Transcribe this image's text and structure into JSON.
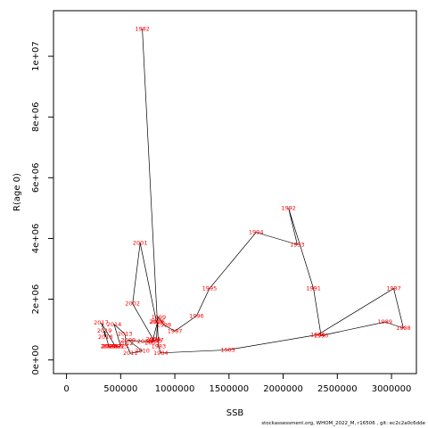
{
  "chart_data": {
    "type": "line",
    "xlabel": "SSB",
    "ylabel": "R(age 0)",
    "xlim": [
      -120000,
      3230000
    ],
    "ylim": [
      -450000,
      11500000
    ],
    "x_ticks": [
      0,
      500000,
      1000000,
      1500000,
      2000000,
      2500000,
      3000000
    ],
    "x_tick_labels": [
      "0",
      "500000",
      "1000000",
      "1500000",
      "2000000",
      "2500000",
      "3000000"
    ],
    "y_ticks": [
      0,
      2000000,
      4000000,
      6000000,
      8000000,
      10000000
    ],
    "y_tick_labels": [
      "0e+00",
      "2e+06",
      "4e+06",
      "6e+06",
      "8e+06",
      "1e+07"
    ],
    "grid": false,
    "line_color": "#000000",
    "label_color": "#ff0000",
    "points": [
      {
        "year": "1982",
        "x": 700000,
        "y": 10900000
      },
      {
        "year": "1983",
        "x": 850000,
        "y": 450000
      },
      {
        "year": "1984",
        "x": 870000,
        "y": 230000
      },
      {
        "year": "1985",
        "x": 1490000,
        "y": 330000
      },
      {
        "year": "1986",
        "x": 2320000,
        "y": 830000
      },
      {
        "year": "1987",
        "x": 3020000,
        "y": 2350000
      },
      {
        "year": "1988",
        "x": 3110000,
        "y": 1050000
      },
      {
        "year": "1989",
        "x": 2940000,
        "y": 1250000
      },
      {
        "year": "1990",
        "x": 2350000,
        "y": 800000
      },
      {
        "year": "1991",
        "x": 2280000,
        "y": 2350000
      },
      {
        "year": "1992",
        "x": 2050000,
        "y": 5000000
      },
      {
        "year": "1993",
        "x": 2130000,
        "y": 3800000
      },
      {
        "year": "1994",
        "x": 1750000,
        "y": 4200000
      },
      {
        "year": "1995",
        "x": 1320000,
        "y": 2350000
      },
      {
        "year": "1996",
        "x": 1200000,
        "y": 1450000
      },
      {
        "year": "1997",
        "x": 1000000,
        "y": 950000
      },
      {
        "year": "1998",
        "x": 900000,
        "y": 1150000
      },
      {
        "year": "1999",
        "x": 850000,
        "y": 1400000
      },
      {
        "year": "2000",
        "x": 830000,
        "y": 1250000
      },
      {
        "year": "2001",
        "x": 680000,
        "y": 3850000
      },
      {
        "year": "2002",
        "x": 610000,
        "y": 1850000
      },
      {
        "year": "2003",
        "x": 810000,
        "y": 620000
      },
      {
        "year": "2004",
        "x": 800000,
        "y": 680000
      },
      {
        "year": "2005",
        "x": 790000,
        "y": 570000
      },
      {
        "year": "2006",
        "x": 840000,
        "y": 1250000
      },
      {
        "year": "2007",
        "x": 830000,
        "y": 650000
      },
      {
        "year": "2008",
        "x": 720000,
        "y": 600000
      },
      {
        "year": "2009",
        "x": 570000,
        "y": 650000
      },
      {
        "year": "2010",
        "x": 700000,
        "y": 300000
      },
      {
        "year": "2011",
        "x": 590000,
        "y": 220000
      },
      {
        "year": "2012",
        "x": 550000,
        "y": 550000
      },
      {
        "year": "2013",
        "x": 540000,
        "y": 850000
      },
      {
        "year": "2014",
        "x": 440000,
        "y": 1170000
      },
      {
        "year": "2015",
        "x": 500000,
        "y": 450000
      },
      {
        "year": "2016",
        "x": 450000,
        "y": 450000
      },
      {
        "year": "2017",
        "x": 320000,
        "y": 1230000
      },
      {
        "year": "2018",
        "x": 360000,
        "y": 760000
      },
      {
        "year": "2019",
        "x": 350000,
        "y": 960000
      },
      {
        "year": "2020",
        "x": 390000,
        "y": 450000
      },
      {
        "year": "2021",
        "x": 380000,
        "y": 450000
      },
      {
        "year": "2022",
        "x": 470000,
        "y": 450000
      },
      {
        "year": "2023",
        "x": 400000,
        "y": 450000
      }
    ]
  },
  "footer": {
    "text": "stockassessment.org, WHOM_2022_M, r16506 , git: ec2c2a0c6dde"
  }
}
